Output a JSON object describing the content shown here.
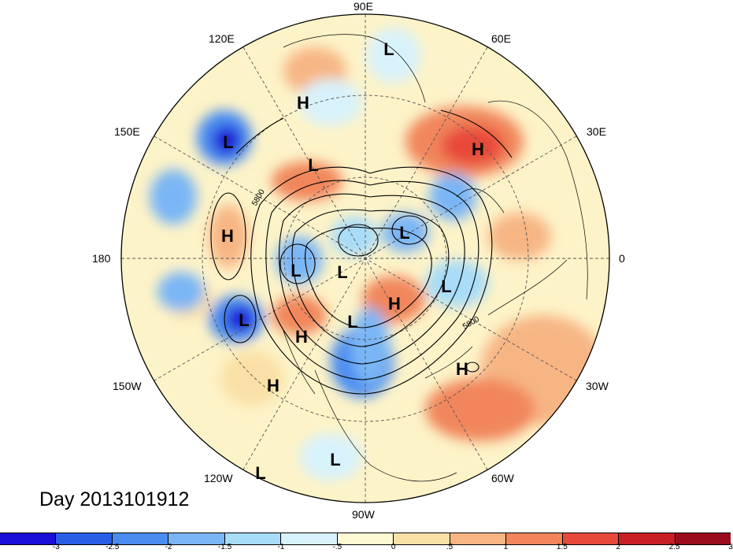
{
  "title": "Day 2013101912",
  "contour_label": "5800",
  "longitude_labels": {
    "top": "90E",
    "upper_left": "120E",
    "upper_right": "60E",
    "mid_left_up": "150E",
    "mid_right_up": "30E",
    "left": "180",
    "right": "0",
    "mid_left_down": "150W",
    "mid_right_down": "30W",
    "lower_left": "120W",
    "lower_right": "60W",
    "bottom": "90W"
  },
  "pressure_centers": [
    {
      "type": "L",
      "name": "low-north-siberia"
    },
    {
      "type": "H",
      "name": "high-east-siberia"
    },
    {
      "type": "L",
      "name": "low-kamchatka"
    },
    {
      "type": "L",
      "name": "low-chukotka"
    },
    {
      "type": "H",
      "name": "high-scandinavia"
    },
    {
      "type": "H",
      "name": "high-central-pacific"
    },
    {
      "type": "L",
      "name": "low-bering"
    },
    {
      "type": "L",
      "name": "low-arctic-ocean"
    },
    {
      "type": "L",
      "name": "low-barents"
    },
    {
      "type": "L",
      "name": "low-greenland"
    },
    {
      "type": "H",
      "name": "high-hudson"
    },
    {
      "type": "L",
      "name": "low-canada"
    },
    {
      "type": "L",
      "name": "low-gulf-alaska"
    },
    {
      "type": "H",
      "name": "high-alaska-coast"
    },
    {
      "type": "H",
      "name": "high-north-atlantic"
    },
    {
      "type": "H",
      "name": "high-east-pacific"
    },
    {
      "type": "L",
      "name": "low-mexico"
    },
    {
      "type": "L",
      "name": "low-east-pacific"
    }
  ],
  "colorbar": {
    "colors": [
      "#1a0fd6",
      "#2a5ee6",
      "#4a8cf0",
      "#7ab6f5",
      "#a8dcf8",
      "#d8f2fb",
      "#fdf9d3",
      "#fae0a6",
      "#f7b584",
      "#f1865c",
      "#e8493a",
      "#c81e26",
      "#9a0c1c"
    ],
    "labels": [
      "-3",
      "-2.5",
      "-2",
      "-1.5",
      "-1",
      "-.5",
      "0",
      ".5",
      "1",
      "1.5",
      "2",
      "2.5",
      "3"
    ]
  }
}
